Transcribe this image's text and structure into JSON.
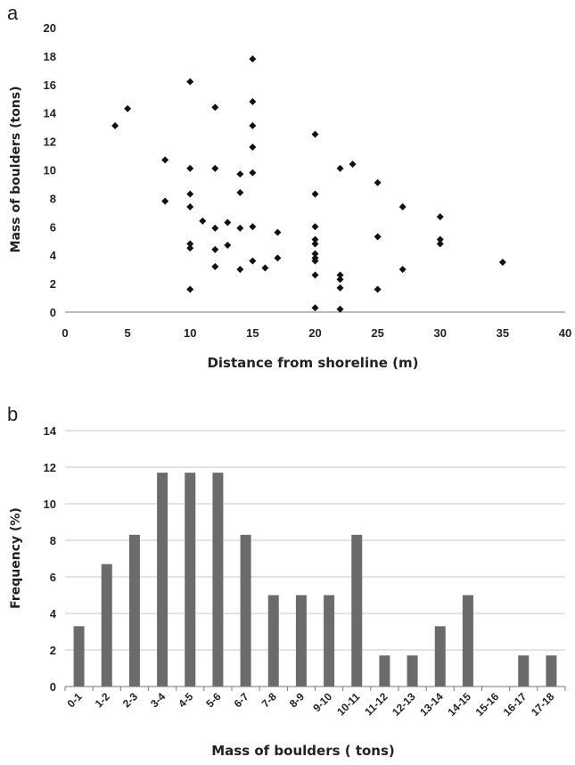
{
  "chart_data": [
    {
      "panel_label": "a",
      "type": "scatter",
      "xlabel": "Distance from shoreline (m)",
      "ylabel": "Mass of boulders (tons)",
      "xlim": [
        0,
        40
      ],
      "ylim": [
        0,
        20
      ],
      "xticks": [
        "0",
        "5",
        "10",
        "15",
        "20",
        "25",
        "30",
        "35",
        "40"
      ],
      "yticks": [
        "0",
        "2",
        "4",
        "6",
        "8",
        "10",
        "12",
        "14",
        "16",
        "18",
        "20"
      ],
      "grid": false,
      "marker": "diamond",
      "color": "#111111",
      "points": [
        {
          "x": 4,
          "y": 13.1
        },
        {
          "x": 5,
          "y": 14.3
        },
        {
          "x": 8,
          "y": 10.7
        },
        {
          "x": 8,
          "y": 7.8
        },
        {
          "x": 10,
          "y": 16.2
        },
        {
          "x": 10,
          "y": 10.1
        },
        {
          "x": 10,
          "y": 8.3
        },
        {
          "x": 10,
          "y": 7.4
        },
        {
          "x": 10,
          "y": 4.8
        },
        {
          "x": 10,
          "y": 4.5
        },
        {
          "x": 10,
          "y": 1.6
        },
        {
          "x": 11,
          "y": 6.4
        },
        {
          "x": 12,
          "y": 14.4
        },
        {
          "x": 12,
          "y": 10.1
        },
        {
          "x": 12,
          "y": 5.9
        },
        {
          "x": 12,
          "y": 4.4
        },
        {
          "x": 12,
          "y": 3.2
        },
        {
          "x": 13,
          "y": 6.3
        },
        {
          "x": 13,
          "y": 4.7
        },
        {
          "x": 14,
          "y": 9.7
        },
        {
          "x": 14,
          "y": 8.4
        },
        {
          "x": 14,
          "y": 5.9
        },
        {
          "x": 14,
          "y": 3.0
        },
        {
          "x": 15,
          "y": 17.8
        },
        {
          "x": 15,
          "y": 14.8
        },
        {
          "x": 15,
          "y": 13.1
        },
        {
          "x": 15,
          "y": 11.6
        },
        {
          "x": 15,
          "y": 9.8
        },
        {
          "x": 15,
          "y": 6.0
        },
        {
          "x": 15,
          "y": 3.6
        },
        {
          "x": 16,
          "y": 3.1
        },
        {
          "x": 17,
          "y": 5.6
        },
        {
          "x": 17,
          "y": 3.8
        },
        {
          "x": 20,
          "y": 12.5
        },
        {
          "x": 20,
          "y": 8.3
        },
        {
          "x": 20,
          "y": 6.0
        },
        {
          "x": 20,
          "y": 5.1
        },
        {
          "x": 20,
          "y": 4.8
        },
        {
          "x": 20,
          "y": 4.1
        },
        {
          "x": 20,
          "y": 3.8
        },
        {
          "x": 20,
          "y": 3.6
        },
        {
          "x": 20,
          "y": 2.6
        },
        {
          "x": 20,
          "y": 0.3
        },
        {
          "x": 22,
          "y": 10.1
        },
        {
          "x": 22,
          "y": 2.6
        },
        {
          "x": 22,
          "y": 2.3
        },
        {
          "x": 22,
          "y": 1.7
        },
        {
          "x": 22,
          "y": 0.2
        },
        {
          "x": 23,
          "y": 10.4
        },
        {
          "x": 25,
          "y": 9.1
        },
        {
          "x": 25,
          "y": 5.3
        },
        {
          "x": 25,
          "y": 1.6
        },
        {
          "x": 27,
          "y": 7.4
        },
        {
          "x": 27,
          "y": 3.0
        },
        {
          "x": 30,
          "y": 6.7
        },
        {
          "x": 30,
          "y": 5.1
        },
        {
          "x": 30,
          "y": 4.8
        },
        {
          "x": 35,
          "y": 3.5
        }
      ]
    },
    {
      "panel_label": "b",
      "type": "bar",
      "xlabel": "Mass of boulders ( tons)",
      "ylabel": "Frequency (%)",
      "ylim": [
        0,
        14
      ],
      "yticks": [
        "0",
        "2",
        "4",
        "6",
        "8",
        "10",
        "12",
        "14"
      ],
      "grid": true,
      "bar_color": "#6b6b6b",
      "grid_color": "#c8c8c8",
      "categories": [
        "0-1",
        "1-2",
        "2-3",
        "3-4",
        "4-5",
        "5-6",
        "6-7",
        "7-8",
        "8-9",
        "9-10",
        "10-11",
        "11-12",
        "12-13",
        "13-14",
        "14-15",
        "15-16",
        "16-17",
        "17-18"
      ],
      "values": [
        3.3,
        6.7,
        8.3,
        11.7,
        11.7,
        11.7,
        8.3,
        5.0,
        5.0,
        5.0,
        8.3,
        1.7,
        1.7,
        3.3,
        5.0,
        0,
        1.7,
        1.7
      ]
    }
  ]
}
